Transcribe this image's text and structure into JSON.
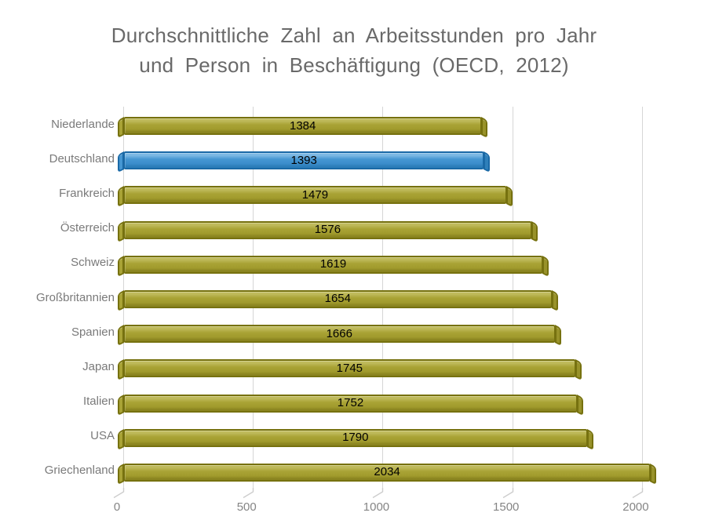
{
  "title": {
    "line1": "Durchschnittliche Zahl an Arbeitsstunden pro Jahr",
    "line2": "und Person in Beschäftigung (OECD, 2012)"
  },
  "chart_data": {
    "type": "bar",
    "orientation": "horizontal",
    "style": "3d-beveled-bars",
    "title": "Durchschnittliche Zahl an Arbeitsstunden pro Jahr und Person in Beschäftigung (OECD, 2012)",
    "categories": [
      "Niederlande",
      "Deutschland",
      "Frankreich",
      "Österreich",
      "Schweiz",
      "Großbritannien",
      "Spanien",
      "Japan",
      "Italien",
      "USA",
      "Griechenland"
    ],
    "values": [
      1384,
      1393,
      1479,
      1576,
      1619,
      1654,
      1666,
      1745,
      1752,
      1790,
      2034
    ],
    "highlight_index": 1,
    "highlighted_category": "Deutschland",
    "x_ticks": [
      0,
      500,
      1000,
      1500,
      2000
    ],
    "xlim": [
      0,
      2100
    ],
    "grid": true,
    "legend": false,
    "data_labels": "inside-center",
    "colors": {
      "bar_fill": "#A9A335",
      "bar_edge": "#76710F",
      "highlight_fill": "#4596D2",
      "highlight_edge": "#1A69A6",
      "gridline": "#D6D6D6",
      "category_label": "#7A7A7A",
      "tick_label": "#858585",
      "data_label": "#000000",
      "title": "#696969",
      "background": "#FFFFFF"
    }
  }
}
